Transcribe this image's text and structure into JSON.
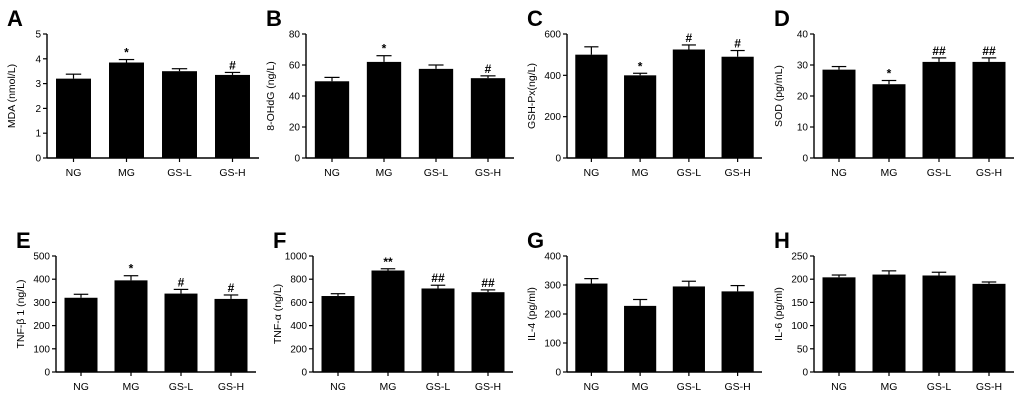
{
  "background": "#ffffff",
  "bar_color": "#000000",
  "chart_data": [
    {
      "letter": "A",
      "type": "bar",
      "ylabel": "MDA (nmol/L)",
      "ylim": [
        0,
        5
      ],
      "yticks": [
        0,
        1,
        2,
        3,
        4,
        5
      ],
      "categories": [
        "NG",
        "MG",
        "GS-L",
        "GS-H"
      ],
      "values": [
        3.2,
        3.85,
        3.5,
        3.35
      ],
      "errors": [
        0.18,
        0.12,
        0.1,
        0.1
      ],
      "marks": [
        "",
        "*",
        "",
        "#"
      ]
    },
    {
      "letter": "B",
      "type": "bar",
      "ylabel": "8-OHdG (ng/L)",
      "ylim": [
        0,
        80
      ],
      "yticks": [
        0,
        20,
        40,
        60,
        80
      ],
      "categories": [
        "NG",
        "MG",
        "GS-L",
        "GS-H"
      ],
      "values": [
        49.5,
        62,
        57.5,
        51.5
      ],
      "errors": [
        2.5,
        4,
        2.5,
        1.5
      ],
      "marks": [
        "",
        "*",
        "",
        "#"
      ]
    },
    {
      "letter": "C",
      "type": "bar",
      "ylabel": "GSH-Px(ng/L)",
      "ylim": [
        0,
        600
      ],
      "yticks": [
        0,
        200,
        400,
        600
      ],
      "categories": [
        "NG",
        "MG",
        "GS-L",
        "GS-H"
      ],
      "values": [
        500,
        400,
        525,
        490
      ],
      "errors": [
        38,
        10,
        22,
        30
      ],
      "marks": [
        "",
        "*",
        "#",
        "#"
      ]
    },
    {
      "letter": "D",
      "type": "bar",
      "ylabel": "SOD (pg/mL)",
      "ylim": [
        0,
        40
      ],
      "yticks": [
        0,
        10,
        20,
        30,
        40
      ],
      "categories": [
        "NG",
        "MG",
        "GS-L",
        "GS-H"
      ],
      "values": [
        28.5,
        23.8,
        31,
        31
      ],
      "errors": [
        1,
        1.2,
        1.3,
        1.3
      ],
      "marks": [
        "",
        "*",
        "##",
        "##"
      ]
    },
    {
      "letter": "E",
      "type": "bar",
      "ylabel": "TNF-β 1 (ng/L)",
      "ylim": [
        0,
        500
      ],
      "yticks": [
        0,
        100,
        200,
        300,
        400,
        500
      ],
      "categories": [
        "NG",
        "MG",
        "GS-L",
        "GS-H"
      ],
      "values": [
        320,
        395,
        338,
        315
      ],
      "errors": [
        15,
        20,
        18,
        17
      ],
      "marks": [
        "",
        "*",
        "#",
        "#"
      ]
    },
    {
      "letter": "F",
      "type": "bar",
      "ylabel": "TNF-α (ng/L)",
      "ylim": [
        0,
        1000
      ],
      "yticks": [
        0,
        200,
        400,
        600,
        800,
        1000
      ],
      "categories": [
        "NG",
        "MG",
        "GS-L",
        "GS-H"
      ],
      "values": [
        655,
        875,
        720,
        688
      ],
      "errors": [
        20,
        15,
        28,
        20
      ],
      "marks": [
        "",
        "**",
        "##",
        "##"
      ]
    },
    {
      "letter": "G",
      "type": "bar",
      "ylabel": "IL-4 (pg/ml)",
      "ylim": [
        0,
        400
      ],
      "yticks": [
        0,
        100,
        200,
        300,
        400
      ],
      "categories": [
        "NG",
        "MG",
        "GS-L",
        "GS-H"
      ],
      "values": [
        305,
        228,
        295,
        278
      ],
      "errors": [
        17,
        22,
        18,
        20
      ],
      "marks": [
        "",
        "",
        "",
        ""
      ]
    },
    {
      "letter": "H",
      "type": "bar",
      "ylabel": "IL-6 (pg/ml)",
      "ylim": [
        0,
        250
      ],
      "yticks": [
        0,
        50,
        100,
        150,
        200,
        250
      ],
      "categories": [
        "NG",
        "MG",
        "GS-L",
        "GS-H"
      ],
      "values": [
        204,
        210,
        208,
        190
      ],
      "errors": [
        5,
        8,
        7,
        4
      ],
      "marks": [
        "",
        "",
        "",
        ""
      ]
    }
  ]
}
